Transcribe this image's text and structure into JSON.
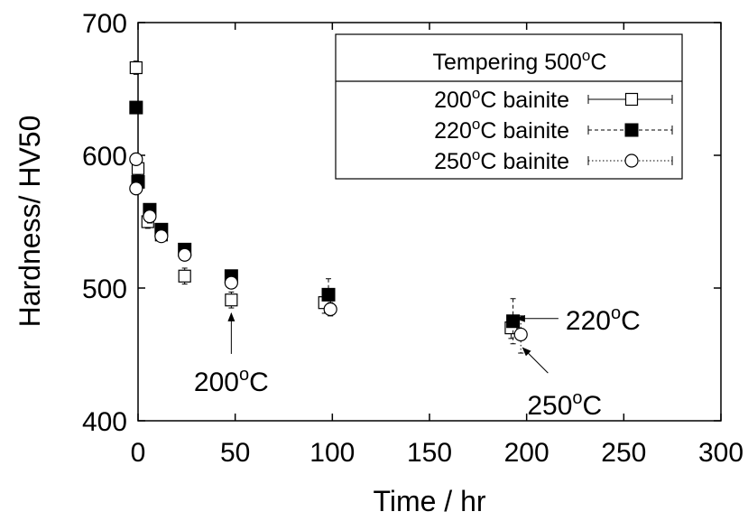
{
  "chart_data": {
    "type": "scatter",
    "title": "",
    "xlabel": "Time / hr",
    "ylabel": "Hardness/ HV50",
    "xlim": [
      0,
      300
    ],
    "ylim": [
      400,
      700
    ],
    "xticks": [
      "0",
      "50",
      "100",
      "150",
      "200",
      "250",
      "300"
    ],
    "yticks": [
      "400",
      "500",
      "600",
      "700"
    ],
    "grid": false,
    "legend": {
      "placement": "top-right",
      "title": "Tempering 500",
      "title_sup": "o",
      "title_suffix": "C"
    },
    "series": [
      {
        "name": "200",
        "name_sup": "o",
        "name_suffix": "C bainite",
        "marker": "open-square",
        "line_style": "solid",
        "points": [
          {
            "x": -1,
            "y": 666,
            "err": 5
          },
          {
            "x": 0,
            "y": 590,
            "err": 5
          },
          {
            "x": 5,
            "y": 550,
            "err": 5
          },
          {
            "x": 12,
            "y": 540,
            "err": 4
          },
          {
            "x": 24,
            "y": 509,
            "err": 6
          },
          {
            "x": 48,
            "y": 491,
            "err": 6
          },
          {
            "x": 96,
            "y": 489,
            "err": 8
          },
          {
            "x": 192,
            "y": 470,
            "err": 8
          }
        ]
      },
      {
        "name": "220",
        "name_sup": "o",
        "name_suffix": "C bainite",
        "marker": "filled-square",
        "line_style": "dashed",
        "points": [
          {
            "x": -1,
            "y": 636,
            "err": 4
          },
          {
            "x": 0,
            "y": 580,
            "err": 4
          },
          {
            "x": 6,
            "y": 559,
            "err": 4
          },
          {
            "x": 12,
            "y": 544,
            "err": 4
          },
          {
            "x": 24,
            "y": 529,
            "err": 4
          },
          {
            "x": 48,
            "y": 509,
            "err": 4
          },
          {
            "x": 98,
            "y": 495,
            "err": 12
          },
          {
            "x": 193,
            "y": 475,
            "err": 17
          }
        ]
      },
      {
        "name": "250",
        "name_sup": "o",
        "name_suffix": "C bainite",
        "marker": "open-circle",
        "line_style": "dotted",
        "points": [
          {
            "x": -1,
            "y": 597,
            "err": 3
          },
          {
            "x": -1,
            "y": 575,
            "err": 3
          },
          {
            "x": 6,
            "y": 554,
            "err": 5
          },
          {
            "x": 12,
            "y": 539,
            "err": 3
          },
          {
            "x": 24,
            "y": 525,
            "err": 3
          },
          {
            "x": 48,
            "y": 504,
            "err": 3
          },
          {
            "x": 99,
            "y": 484,
            "err": 5
          },
          {
            "x": 197,
            "y": 465,
            "err": 14
          }
        ]
      }
    ],
    "annotations": [
      {
        "label": "200",
        "sup": "o",
        "suffix": "C",
        "arrow_x": 48,
        "arrow_y": 481
      },
      {
        "label": "220",
        "sup": "o",
        "suffix": "C",
        "arrow_x": 195,
        "arrow_y": 477
      },
      {
        "label": "250",
        "sup": "o",
        "suffix": "C",
        "arrow_x": 198,
        "arrow_y": 455
      }
    ]
  }
}
